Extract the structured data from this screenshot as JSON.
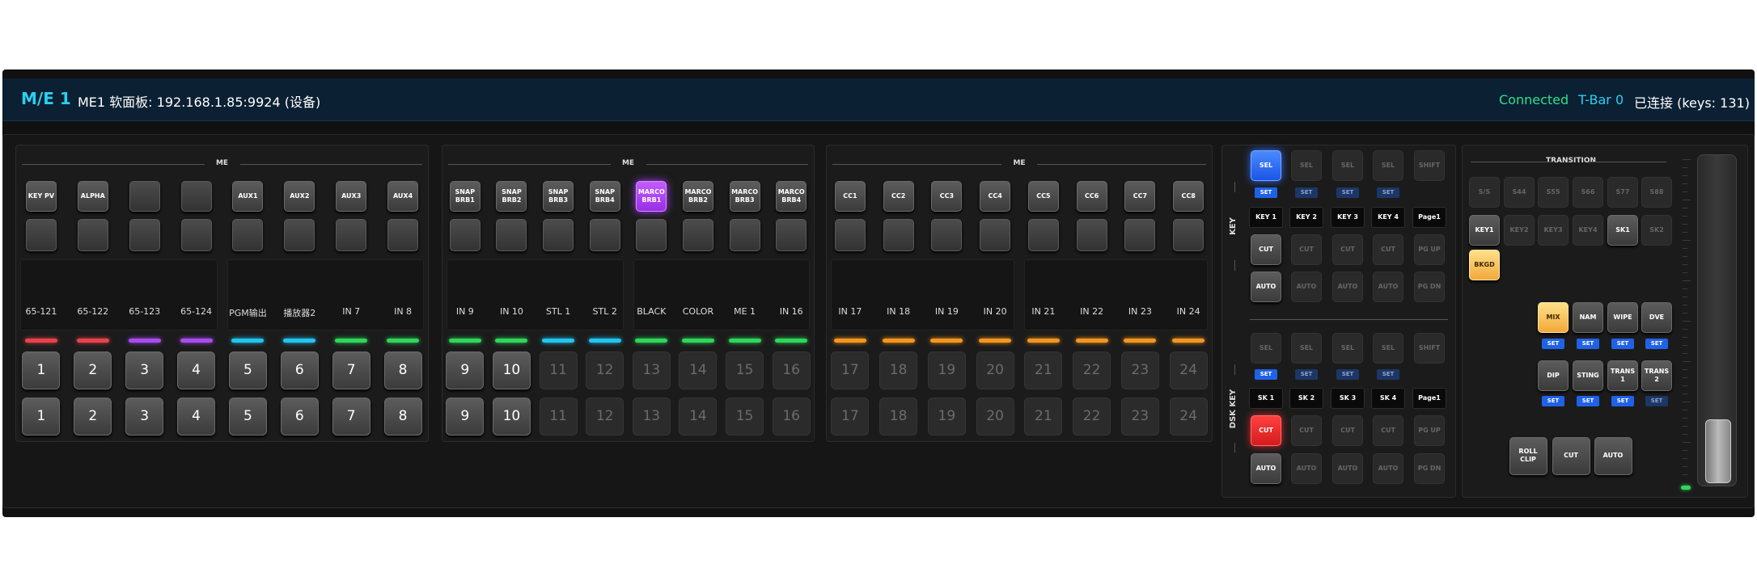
{
  "header": {
    "title": "M/E 1",
    "device": "ME1 软面板: 192.168.1.85:9924 (设备)",
    "status": "Connected",
    "tbar": "T-Bar 0",
    "connection": "已连接 (keys: 131)"
  },
  "me_sections": [
    {
      "title": "ME",
      "top": [
        {
          "label": "KEY PV"
        },
        {
          "label": "ALPHA"
        },
        {
          "label": null
        },
        {
          "label": null
        },
        {
          "label": "AUX1"
        },
        {
          "label": "AUX2"
        },
        {
          "label": "AUX3"
        },
        {
          "label": "AUX4"
        }
      ],
      "sources": [
        "65-121",
        "65-122",
        "65-123",
        "65-124",
        "PGM输出",
        "播放器2",
        "IN 7",
        "IN 8"
      ],
      "tally": [
        "#e8434b",
        "#e8434b",
        "#a84cf0",
        "#a84cf0",
        "#22c4f0",
        "#22c4f0",
        "#2ed65a",
        "#2ed65a"
      ],
      "program": [
        1,
        2,
        3,
        4,
        5,
        6,
        7,
        8
      ],
      "preview": [
        1,
        2,
        3,
        4,
        5,
        6,
        7,
        8
      ],
      "lit": [
        true,
        true,
        true,
        true,
        true,
        true,
        true,
        true
      ]
    },
    {
      "title": "ME",
      "top": [
        {
          "label": "SNAP\nBRB1"
        },
        {
          "label": "SNAP\nBRB2"
        },
        {
          "label": "SNAP\nBRB3"
        },
        {
          "label": "SNAP\nBRB4"
        },
        {
          "label": "MARCO\nBRB1",
          "style": "purple"
        },
        {
          "label": "MARCO\nBRB2"
        },
        {
          "label": "MARCO\nBRB3"
        },
        {
          "label": "MARCO\nBRB4"
        }
      ],
      "sources": [
        "IN 9",
        "IN 10",
        "STL 1",
        "STL 2",
        "BLACK",
        "COLOR",
        "ME 1",
        "IN 16"
      ],
      "tally": [
        "#2ed65a",
        "#2ed65a",
        "#22c4f0",
        "#22c4f0",
        "#2ed65a",
        "#2ed65a",
        "#2ed65a",
        "#2ed65a"
      ],
      "program": [
        9,
        10,
        11,
        12,
        13,
        14,
        15,
        16
      ],
      "preview": [
        9,
        10,
        11,
        12,
        13,
        14,
        15,
        16
      ],
      "lit": [
        true,
        true,
        false,
        false,
        false,
        false,
        false,
        false
      ]
    },
    {
      "title": "ME",
      "top": [
        {
          "label": "CC1"
        },
        {
          "label": "CC2"
        },
        {
          "label": "CC3"
        },
        {
          "label": "CC4"
        },
        {
          "label": "CC5"
        },
        {
          "label": "CC6"
        },
        {
          "label": "CC7"
        },
        {
          "label": "CC8"
        }
      ],
      "sources": [
        "IN 17",
        "IN 18",
        "IN 19",
        "IN 20",
        "IN 21",
        "IN 22",
        "IN 23",
        "IN 24"
      ],
      "tally": [
        "#f5961e",
        "#f5961e",
        "#f5961e",
        "#f5961e",
        "#f5961e",
        "#f5961e",
        "#f5961e",
        "#f5961e"
      ],
      "program": [
        17,
        18,
        19,
        20,
        21,
        22,
        23,
        24
      ],
      "preview": [
        17,
        18,
        19,
        20,
        21,
        22,
        23,
        24
      ],
      "lit": [
        false,
        false,
        false,
        false,
        false,
        false,
        false,
        false
      ]
    }
  ],
  "keys": [
    {
      "label": "KEY",
      "rows": [
        [
          {
            "label": "SEL",
            "style": "blue"
          },
          {
            "label": "SEL",
            "style": "dim"
          },
          {
            "label": "SEL",
            "style": "dim"
          },
          {
            "label": "SEL",
            "style": "dim"
          },
          {
            "label": "SHIFT",
            "style": "dim"
          }
        ],
        [
          {
            "label": "SET",
            "style": "set"
          },
          {
            "label": "SET",
            "style": "setdim"
          },
          {
            "label": "SET",
            "style": "setdim"
          },
          {
            "label": "SET",
            "style": "setdim"
          }
        ],
        [
          {
            "label": "KEY 1",
            "style": "black"
          },
          {
            "label": "KEY 2",
            "style": "black"
          },
          {
            "label": "KEY 3",
            "style": "black"
          },
          {
            "label": "KEY 4",
            "style": "black"
          },
          {
            "label": "Page1",
            "style": "black"
          }
        ],
        [
          {
            "label": "CUT",
            "style": "normal"
          },
          {
            "label": "CUT",
            "style": "dim"
          },
          {
            "label": "CUT",
            "style": "dim"
          },
          {
            "label": "CUT",
            "style": "dim"
          },
          {
            "label": "PG UP",
            "style": "dim"
          }
        ],
        [
          {
            "label": "AUTO",
            "style": "normal"
          },
          {
            "label": "AUTO",
            "style": "dim"
          },
          {
            "label": "AUTO",
            "style": "dim"
          },
          {
            "label": "AUTO",
            "style": "dim"
          },
          {
            "label": "PG DN",
            "style": "dim"
          }
        ]
      ]
    },
    {
      "label": "DSK KEY",
      "rows": [
        [
          {
            "label": "SEL",
            "style": "dim"
          },
          {
            "label": "SEL",
            "style": "dim"
          },
          {
            "label": "SEL",
            "style": "dim"
          },
          {
            "label": "SEL",
            "style": "dim"
          },
          {
            "label": "SHIFT",
            "style": "dim"
          }
        ],
        [
          {
            "label": "SET",
            "style": "set"
          },
          {
            "label": "SET",
            "style": "setdim"
          },
          {
            "label": "SET",
            "style": "setdim"
          },
          {
            "label": "SET",
            "style": "setdim"
          }
        ],
        [
          {
            "label": "SK 1",
            "style": "black"
          },
          {
            "label": "SK 2",
            "style": "black"
          },
          {
            "label": "SK 3",
            "style": "black"
          },
          {
            "label": "SK 4",
            "style": "black"
          },
          {
            "label": "Page1",
            "style": "black"
          }
        ],
        [
          {
            "label": "CUT",
            "style": "red"
          },
          {
            "label": "CUT",
            "style": "dim"
          },
          {
            "label": "CUT",
            "style": "dim"
          },
          {
            "label": "CUT",
            "style": "dim"
          },
          {
            "label": "PG UP",
            "style": "dim"
          }
        ],
        [
          {
            "label": "AUTO",
            "style": "normal"
          },
          {
            "label": "AUTO",
            "style": "dim"
          },
          {
            "label": "AUTO",
            "style": "dim"
          },
          {
            "label": "AUTO",
            "style": "dim"
          },
          {
            "label": "PG DN",
            "style": "dim"
          }
        ]
      ]
    }
  ],
  "transition": {
    "title": "TRANSITION",
    "rows": [
      [
        {
          "label": "S/S",
          "style": "dim"
        },
        {
          "label": "S44",
          "style": "dim"
        },
        {
          "label": "S55",
          "style": "dim"
        },
        {
          "label": "S66",
          "style": "dim"
        },
        {
          "label": "S77",
          "style": "dim"
        },
        {
          "label": "S88",
          "style": "dim"
        }
      ],
      [
        {
          "label": "KEY1",
          "style": "normal"
        },
        {
          "label": "KEY2",
          "style": "dim"
        },
        {
          "label": "KEY3",
          "style": "dim"
        },
        {
          "label": "KEY4",
          "style": "dim"
        },
        {
          "label": "SK1",
          "style": "normal"
        },
        {
          "label": "SK2",
          "style": "dim"
        }
      ],
      [
        {
          "label": "BKGD",
          "style": "yellow"
        }
      ],
      [
        {
          "label": "MIX",
          "style": "yellow"
        },
        {
          "label": "NAM",
          "style": "normal"
        },
        {
          "label": "WIPE",
          "style": "normal"
        },
        {
          "label": "DVE",
          "style": "normal"
        }
      ],
      [
        {
          "label": "SET",
          "style": "set"
        },
        {
          "label": "SET",
          "style": "set"
        },
        {
          "label": "SET",
          "style": "set"
        },
        {
          "label": "SET",
          "style": "set"
        }
      ],
      [
        {
          "label": "DIP",
          "style": "normal"
        },
        {
          "label": "STING",
          "style": "normal"
        },
        {
          "label": "TRANS\n1",
          "style": "normal"
        },
        {
          "label": "TRANS\n2",
          "style": "normal"
        }
      ],
      [
        {
          "label": "SET",
          "style": "set"
        },
        {
          "label": "SET",
          "style": "set"
        },
        {
          "label": "SET",
          "style": "set"
        },
        {
          "label": "SET",
          "style": "setdim"
        }
      ],
      [
        {
          "label": "ROLL\nCLIP",
          "style": "normal"
        },
        {
          "label": "CUT",
          "style": "normal"
        },
        {
          "label": "AUTO",
          "style": "normal"
        }
      ]
    ]
  }
}
